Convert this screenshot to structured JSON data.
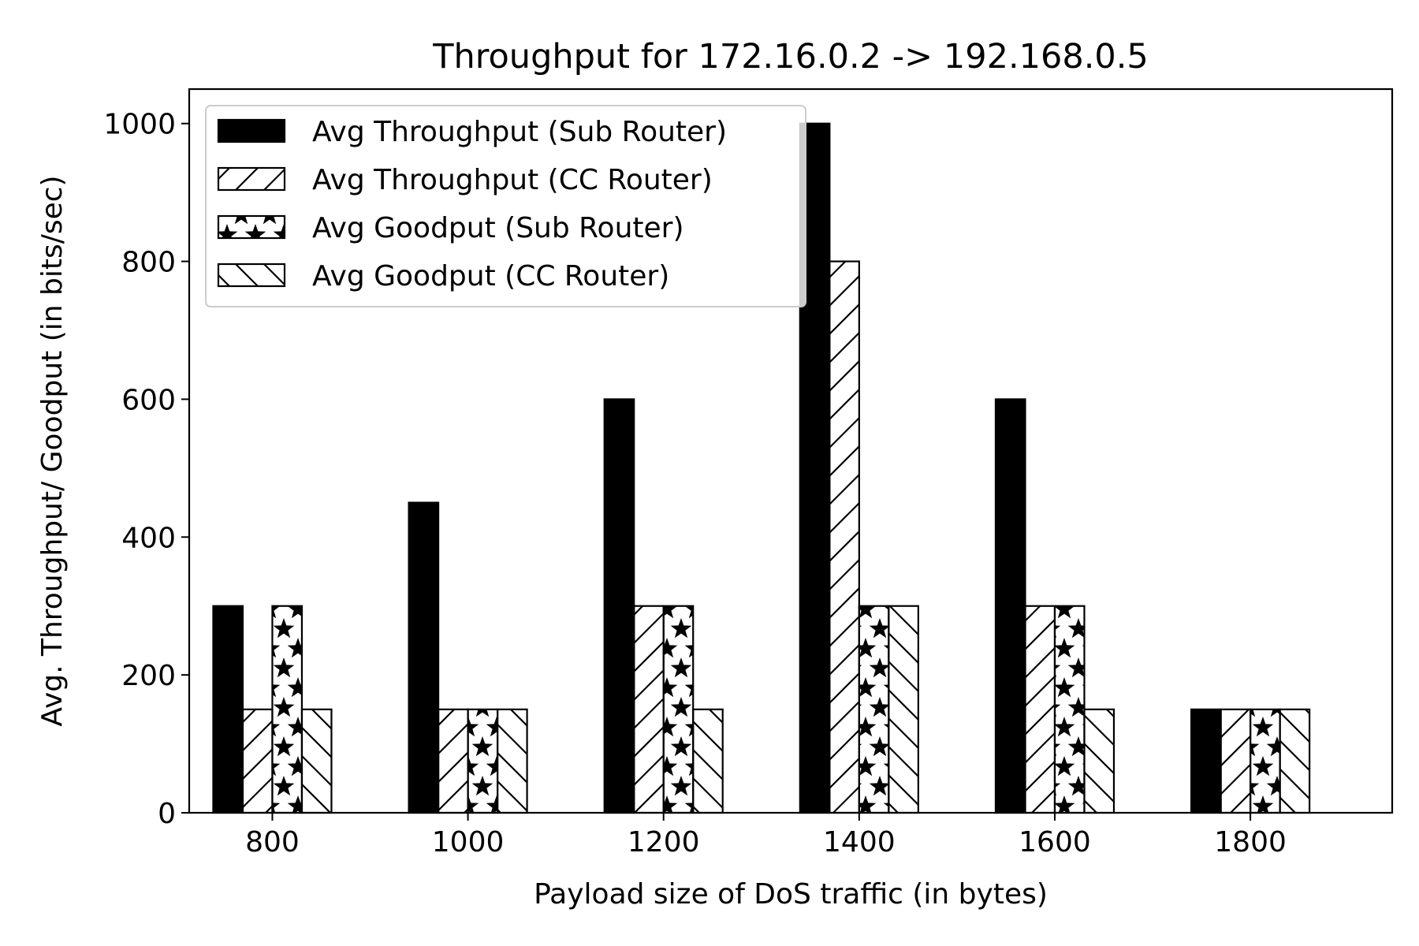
{
  "chart_data": {
    "type": "bar",
    "title": "Throughput for 172.16.0.2 -> 192.168.0.5",
    "xlabel": "Payload size of DoS traffic (in bytes)",
    "ylabel": "Avg. Throughput/ Goodput  (in bits/sec)",
    "categories": [
      800,
      1000,
      1200,
      1400,
      1600,
      1800
    ],
    "xlim": [
      715,
      1945
    ],
    "ylim": [
      0,
      1050
    ],
    "yticks": [
      0,
      200,
      400,
      600,
      800,
      1000
    ],
    "grid": false,
    "legend_position": "upper left",
    "series": [
      {
        "name": "Avg Throughput (Sub Router)",
        "pattern": "solid",
        "values": [
          300,
          450,
          600,
          1000,
          600,
          150
        ]
      },
      {
        "name": "Avg Throughput (CC Router)",
        "pattern": "forward-hatch",
        "values": [
          150,
          150,
          300,
          800,
          300,
          150
        ]
      },
      {
        "name": "Avg Goodput (Sub Router)",
        "pattern": "star-hatch",
        "values": [
          300,
          150,
          300,
          300,
          300,
          150
        ]
      },
      {
        "name": "Avg Goodput (CC Router)",
        "pattern": "back-hatch",
        "values": [
          150,
          150,
          150,
          300,
          150,
          150
        ]
      }
    ]
  }
}
